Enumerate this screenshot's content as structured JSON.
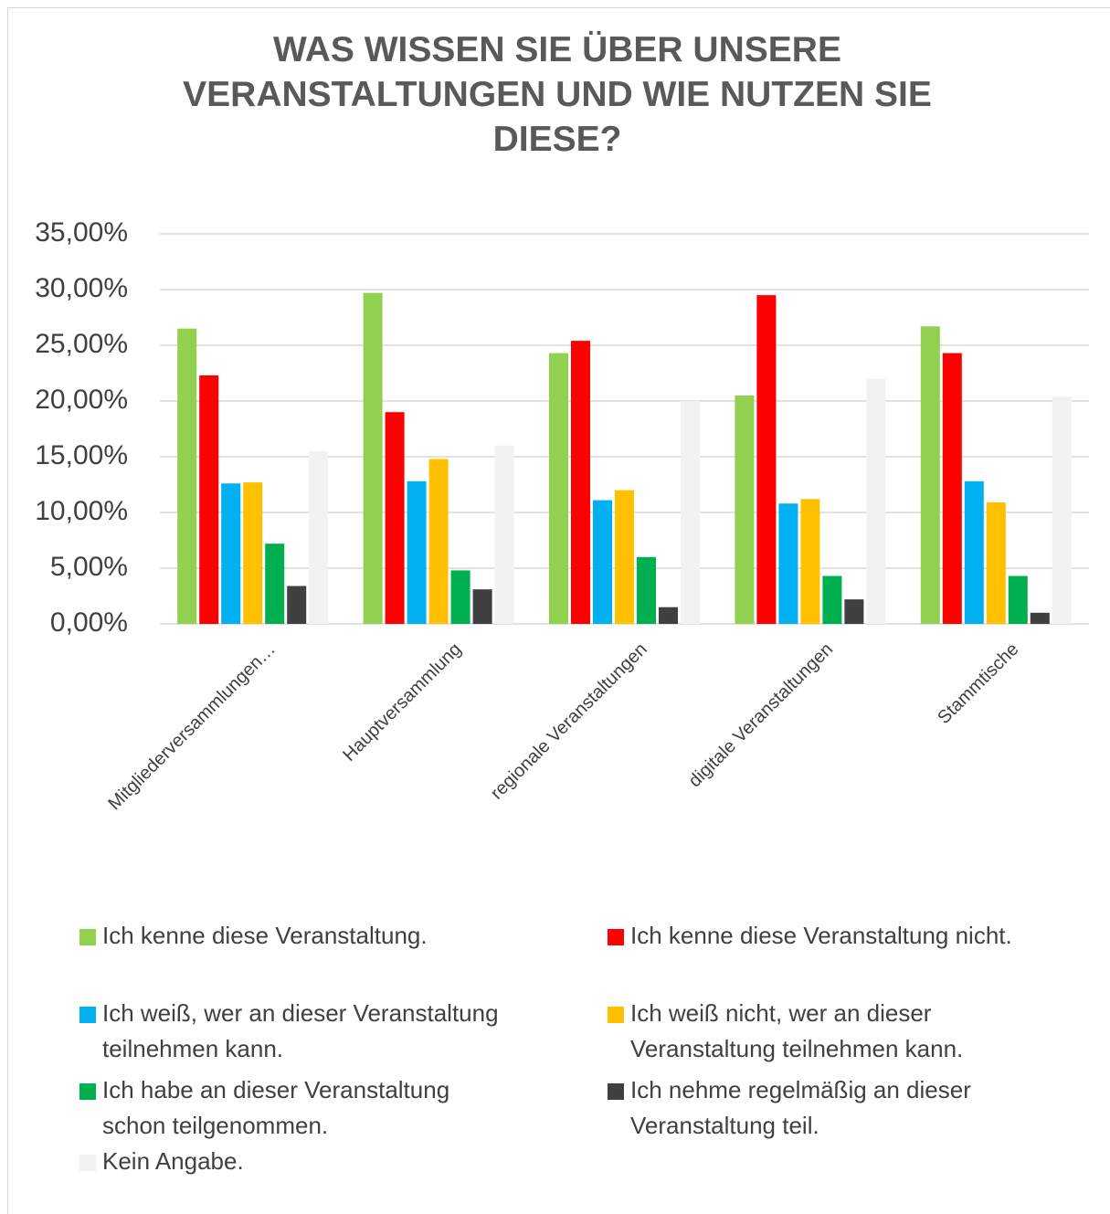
{
  "chart_data": {
    "type": "bar",
    "title": "WAS WISSEN SIE ÜBER UNSERE VERANSTALTUNGEN UND WIE NUTZEN SIE DIESE?",
    "categories": [
      "Mitgliederversammlungen…",
      "Hauptversammlung",
      "regionale Veranstaltungen",
      "digitale Veranstaltungen",
      "Stammtische"
    ],
    "series": [
      {
        "name": "Ich kenne diese Veranstaltung.",
        "color": "#92d050",
        "values": [
          26.5,
          29.7,
          24.3,
          20.5,
          26.7
        ]
      },
      {
        "name": "Ich kenne diese Veranstaltung nicht.",
        "color": "#ff0000",
        "values": [
          22.3,
          19.0,
          25.4,
          29.5,
          24.3
        ]
      },
      {
        "name": "Ich weiß, wer an dieser Veranstaltung teilnehmen kann.",
        "color": "#00b0f0",
        "values": [
          12.6,
          12.8,
          11.1,
          10.8,
          12.8
        ]
      },
      {
        "name": "Ich weiß nicht, wer an dieser Veranstaltung teilnehmen kann.",
        "color": "#ffc000",
        "values": [
          12.7,
          14.8,
          12.0,
          11.2,
          10.9
        ]
      },
      {
        "name": "Ich habe an dieser Veranstaltung schon teilgenommen.",
        "color": "#00b050",
        "values": [
          7.2,
          4.8,
          6.0,
          4.3,
          4.3
        ]
      },
      {
        "name": "Ich nehme regelmäßig an dieser Veranstaltung teil.",
        "color": "#404040",
        "values": [
          3.4,
          3.1,
          1.5,
          2.2,
          1.0
        ]
      },
      {
        "name": "Kein Angabe.",
        "color": "#f2f2f2",
        "values": [
          15.5,
          16.0,
          20.0,
          22.0,
          20.4
        ]
      }
    ],
    "ylim": [
      0,
      35
    ],
    "yticks": [
      {
        "value": 0,
        "label": "0,00%"
      },
      {
        "value": 5,
        "label": "5,00%"
      },
      {
        "value": 10,
        "label": "10,00%"
      },
      {
        "value": 15,
        "label": "15,00%"
      },
      {
        "value": 20,
        "label": "20,00%"
      },
      {
        "value": 25,
        "label": "25,00%"
      },
      {
        "value": 30,
        "label": "30,00%"
      },
      {
        "value": 35,
        "label": "35,00%"
      }
    ],
    "grid": true,
    "legend": "bottom"
  }
}
